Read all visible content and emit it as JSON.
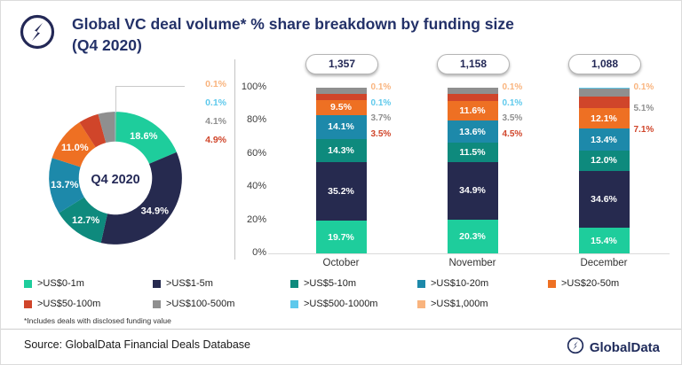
{
  "header": {
    "title_line1": "Global VC deal volume* % share breakdown by funding size",
    "title_line2": "(Q4 2020)"
  },
  "colors": {
    "green": "#1ecd9c",
    "navy": "#262a4f",
    "darkteal": "#0e8a7d",
    "tealblue": "#1d89aa",
    "orange": "#ee7023",
    "red": "#d0452a",
    "gray": "#8f8f8f",
    "lightblue": "#5ec9ec",
    "peach": "#f9b47e",
    "title_navy": "#233168"
  },
  "chart_data": [
    {
      "type": "pie",
      "title": "Q4 2020",
      "center_label": "Q4 2020",
      "labels": [
        ">US$0-1m",
        ">US$1-5m",
        ">US$5-10m",
        ">US$10-20m",
        ">US$20-50m",
        ">US$50-100m",
        ">US$100-500m",
        ">US$500-1000m",
        ">US$1,000m"
      ],
      "values": [
        18.6,
        34.9,
        12.7,
        13.7,
        11.0,
        4.9,
        4.1,
        0.1,
        0.1
      ],
      "color_keys": [
        "green",
        "navy",
        "darkteal",
        "tealblue",
        "orange",
        "red",
        "gray",
        "lightblue",
        "peach"
      ],
      "callout_labels": [
        {
          "text": "0.1%",
          "color_key": "peach"
        },
        {
          "text": "0.1%",
          "color_key": "lightblue"
        },
        {
          "text": "4.1%",
          "color_key": "gray"
        },
        {
          "text": "4.9%",
          "color_key": "red"
        }
      ]
    },
    {
      "type": "bar",
      "stacked": true,
      "categories": [
        "October",
        "November",
        "December"
      ],
      "totals": [
        "1,357",
        "1,158",
        "1,088"
      ],
      "y_ticks": [
        "100%",
        "80%",
        "60%",
        "40%",
        "20%",
        "0%"
      ],
      "ylim": [
        0,
        100
      ],
      "series": [
        {
          "name": ">US$0-1m",
          "color_key": "green",
          "values": [
            19.7,
            20.3,
            15.4
          ]
        },
        {
          "name": ">US$1-5m",
          "color_key": "navy",
          "values": [
            35.2,
            34.9,
            34.6
          ]
        },
        {
          "name": ">US$5-10m",
          "color_key": "darkteal",
          "values": [
            14.3,
            11.5,
            12.0
          ]
        },
        {
          "name": ">US$10-20m",
          "color_key": "tealblue",
          "values": [
            14.1,
            13.6,
            13.4
          ]
        },
        {
          "name": ">US$20-50m",
          "color_key": "orange",
          "values": [
            9.5,
            11.6,
            12.1
          ]
        },
        {
          "name": ">US$50-100m",
          "color_key": "red",
          "values": [
            3.5,
            4.5,
            7.1
          ]
        },
        {
          "name": ">US$100-500m",
          "color_key": "gray",
          "values": [
            3.7,
            3.5,
            5.1
          ]
        },
        {
          "name": ">US$500-1000m",
          "color_key": "lightblue",
          "values": [
            0.1,
            0.1,
            0.1
          ]
        },
        {
          "name": ">US$1,000m",
          "color_key": "peach",
          "values": [
            0.1,
            0.1,
            0.1
          ]
        }
      ],
      "outside_labels": [
        [
          {
            "text": "0.1%",
            "color_key": "peach"
          },
          {
            "text": "0.1%",
            "color_key": "lightblue"
          },
          {
            "text": "3.7%",
            "color_key": "gray"
          },
          {
            "text": "3.5%",
            "color_key": "red"
          }
        ],
        [
          {
            "text": "0.1%",
            "color_key": "peach"
          },
          {
            "text": "0.1%",
            "color_key": "lightblue"
          },
          {
            "text": "3.5%",
            "color_key": "gray"
          },
          {
            "text": "4.5%",
            "color_key": "red"
          }
        ],
        [
          {
            "text": "0.1%",
            "color_key": "peach"
          },
          {
            "text": "5.1%",
            "color_key": "gray"
          },
          {
            "text": "7.1%",
            "color_key": "red"
          }
        ]
      ]
    }
  ],
  "legend": {
    "items": [
      {
        "label": ">US$0-1m",
        "color_key": "green"
      },
      {
        "label": ">US$1-5m",
        "color_key": "navy"
      },
      {
        "label": ">US$5-10m",
        "color_key": "darkteal"
      },
      {
        "label": ">US$10-20m",
        "color_key": "tealblue"
      },
      {
        "label": ">US$20-50m",
        "color_key": "orange"
      },
      {
        "label": ">US$50-100m",
        "color_key": "red"
      },
      {
        "label": ">US$100-500m",
        "color_key": "gray"
      },
      {
        "label": ">US$500-1000m",
        "color_key": "lightblue"
      },
      {
        "label": ">US$1,000m",
        "color_key": "peach"
      }
    ]
  },
  "footnote": "*Includes deals with disclosed funding value",
  "source": "Source: GlobalData Financial Deals Database",
  "brand": "GlobalData"
}
